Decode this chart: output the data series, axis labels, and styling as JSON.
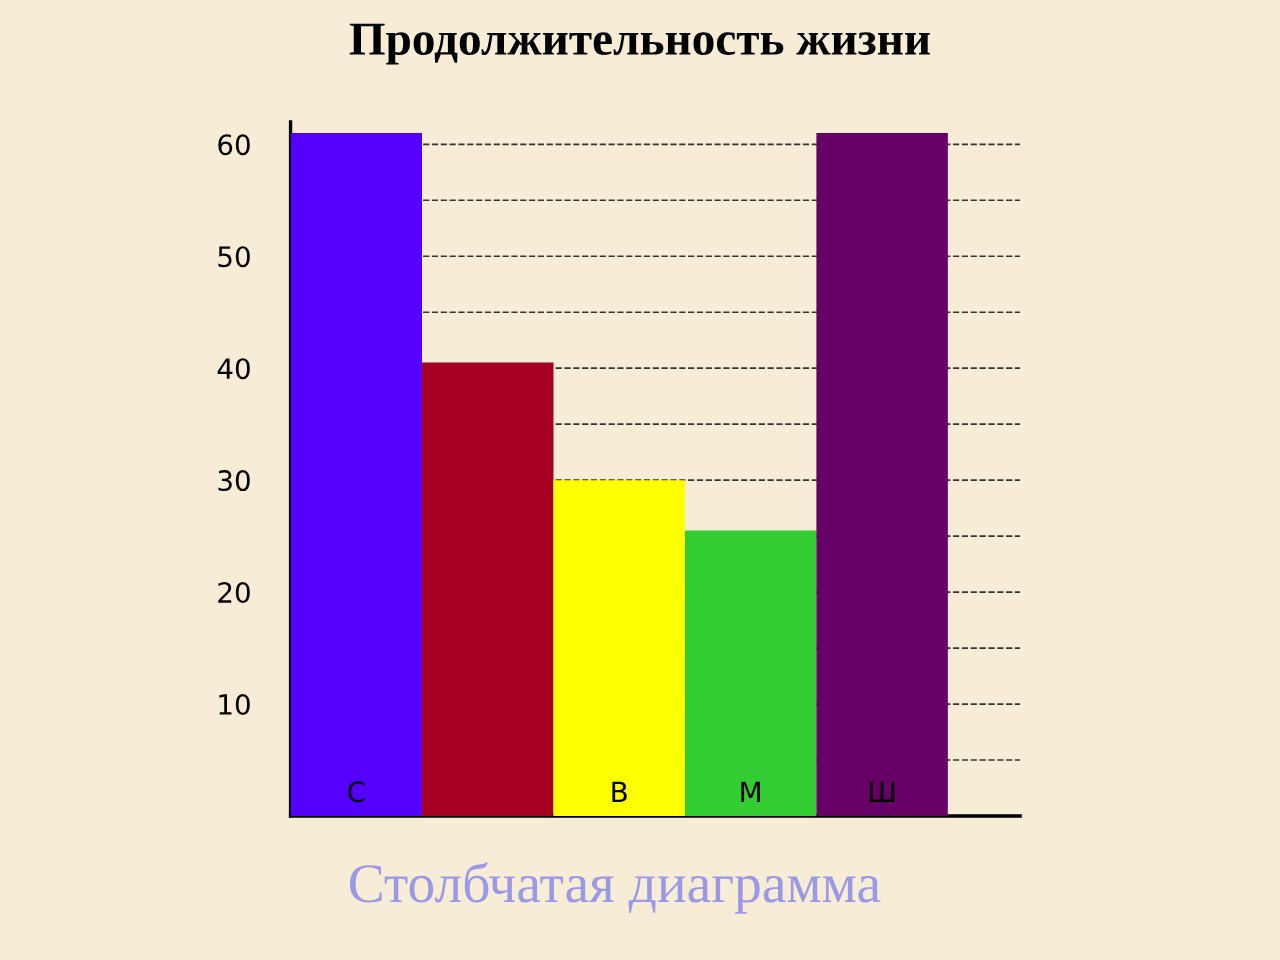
{
  "chart_data": {
    "type": "bar",
    "title": "Продолжительность жизни",
    "categories": [
      "С",
      null,
      "В",
      "М",
      "Ш"
    ],
    "values": [
      61,
      40.5,
      30,
      25.5,
      61
    ],
    "colors": [
      "#5500ff",
      "#a50021",
      "#ffff00",
      "#33cc33",
      "#660066"
    ],
    "ylim": [
      0,
      62
    ],
    "yticks": [
      {
        "value": 5,
        "label": null
      },
      10,
      {
        "value": 15,
        "label": null
      },
      20,
      {
        "value": 25,
        "label": null
      },
      30,
      {
        "value": 35,
        "label": null
      },
      40,
      {
        "value": 45,
        "label": null
      },
      50,
      {
        "value": 55,
        "label": null
      },
      60
    ],
    "grid": "y",
    "line_style": "dashed",
    "annotations": [
      "Столбчатая диаграмма"
    ]
  }
}
